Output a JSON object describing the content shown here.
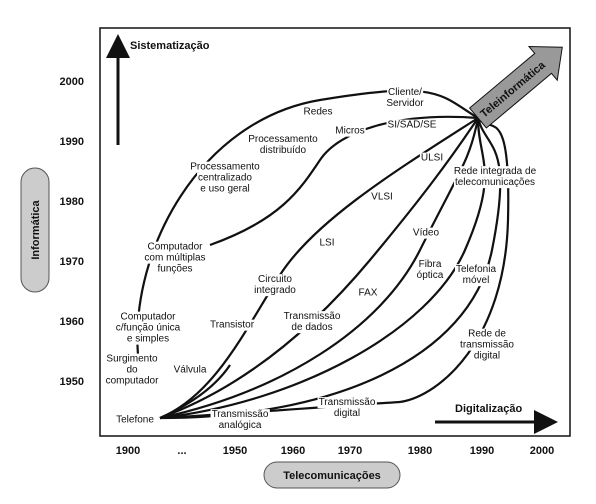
{
  "axes": {
    "y_label": "Informática",
    "x_label": "Telecomunicações",
    "y_arrow": "Sistematização",
    "x_arrow": "Digitalização",
    "corner": "Teleinformática",
    "y_ticks": [
      "2000",
      "1990",
      "1980",
      "1970",
      "1960",
      "1950"
    ],
    "x_ticks": [
      "1900",
      "...",
      "1950",
      "1960",
      "1970",
      "1980",
      "1990",
      "2000"
    ]
  },
  "labels": [
    {
      "lines": [
        "Cliente/",
        "Servidor"
      ]
    },
    {
      "lines": [
        "Redes"
      ]
    },
    {
      "lines": [
        "SI/SAD/SE"
      ]
    },
    {
      "lines": [
        "Micros"
      ]
    },
    {
      "lines": [
        "Processamento",
        "distribuído"
      ]
    },
    {
      "lines": [
        "ULSI"
      ]
    },
    {
      "lines": [
        "Processamento",
        "centralizado",
        "e uso geral"
      ]
    },
    {
      "lines": [
        "Rede integrada de",
        "telecomunicações"
      ]
    },
    {
      "lines": [
        "VLSI"
      ]
    },
    {
      "lines": [
        "Vídeo"
      ]
    },
    {
      "lines": [
        "LSI"
      ]
    },
    {
      "lines": [
        "Computador",
        "com múltiplas",
        "funções"
      ]
    },
    {
      "lines": [
        "Fibra",
        "óptica"
      ]
    },
    {
      "lines": [
        "Telefonia",
        "móvel"
      ]
    },
    {
      "lines": [
        "Circuito",
        "integrado"
      ]
    },
    {
      "lines": [
        "FAX"
      ]
    },
    {
      "lines": [
        "Transistor"
      ]
    },
    {
      "lines": [
        "Transmissão",
        "de dados"
      ]
    },
    {
      "lines": [
        "Computador",
        "c/função única",
        "e simples"
      ]
    },
    {
      "lines": [
        "Rede de",
        "transmissão",
        "digital"
      ]
    },
    {
      "lines": [
        "Surgimento",
        "do",
        "computador"
      ]
    },
    {
      "lines": [
        "Válvula"
      ]
    },
    {
      "lines": [
        "Telefone"
      ]
    },
    {
      "lines": [
        "Transmissão",
        "analógica"
      ]
    },
    {
      "lines": [
        "Transmissão",
        "digital"
      ]
    }
  ]
}
